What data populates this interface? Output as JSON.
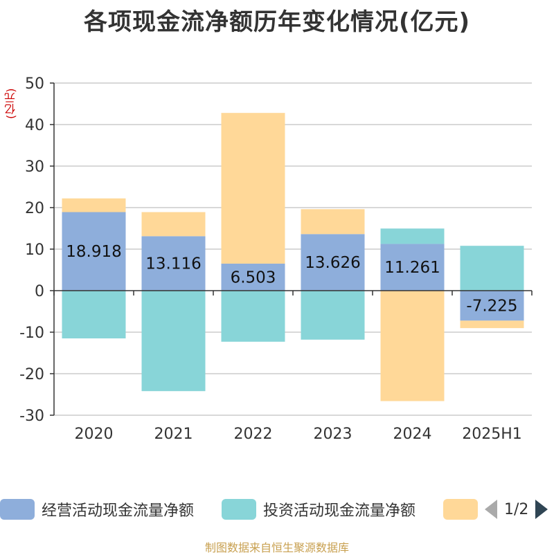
{
  "chart_data": {
    "type": "bar",
    "stacked": true,
    "title": "各项现金流净额历年变化情况(亿元)",
    "yunit": "(亿元)",
    "categories": [
      "2020",
      "2021",
      "2022",
      "2023",
      "2024",
      "2025H1"
    ],
    "ylim": [
      -30,
      50
    ],
    "yticks": [
      -30,
      -20,
      -10,
      0,
      10,
      20,
      30,
      40,
      50
    ],
    "grid": true,
    "legend_position": "bottom",
    "series": [
      {
        "name": "经营活动现金流量净额",
        "color": "#8eaedb",
        "values": [
          18.918,
          13.116,
          6.503,
          13.626,
          11.261,
          -7.225
        ]
      },
      {
        "name": "投资活动现金流量净额",
        "color": "#88d5d8",
        "values": [
          -11.5,
          -24.2,
          -12.3,
          -11.8,
          3.7,
          10.8
        ]
      },
      {
        "name": "",
        "color": "#ffd898",
        "values": [
          3.3,
          5.8,
          36.3,
          6.0,
          -26.6,
          -1.8
        ]
      }
    ],
    "data_labels": [
      "18.918",
      "13.116",
      "6.503",
      "13.626",
      "11.261",
      "-7.225"
    ]
  },
  "legend": {
    "page": "1/2"
  },
  "source": "制图数据来自恒生聚源数据库"
}
